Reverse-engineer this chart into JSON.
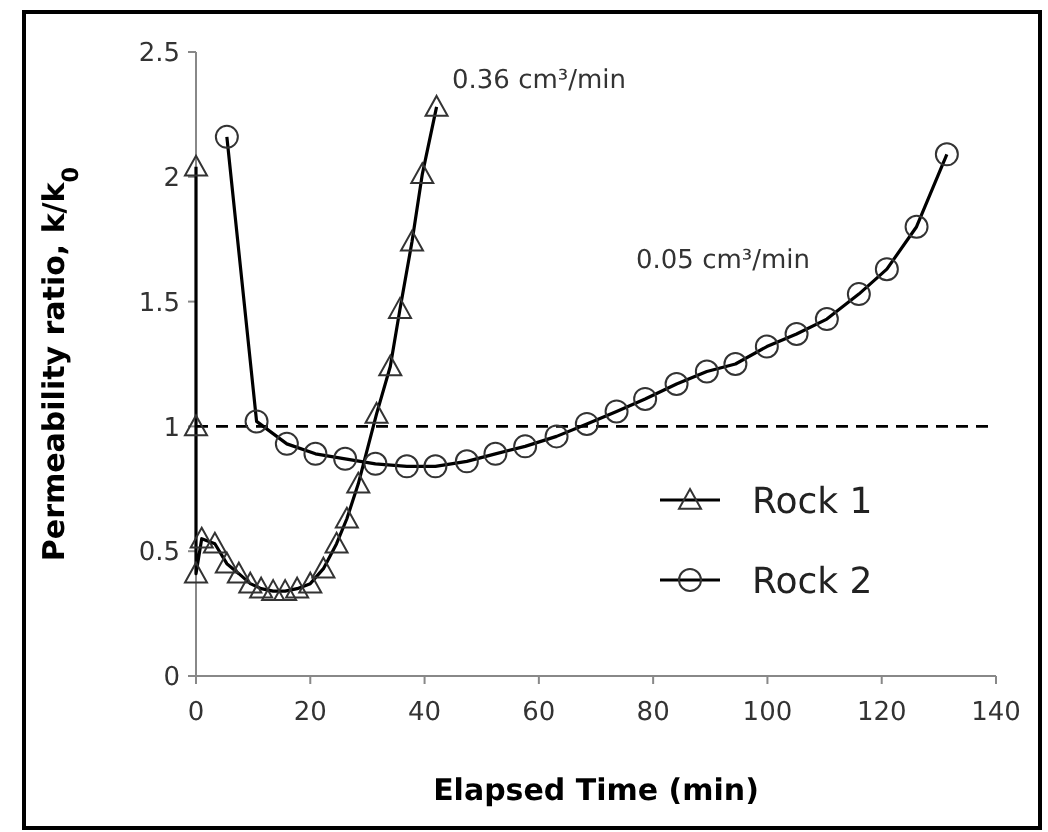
{
  "chart_data": {
    "type": "line",
    "xlabel": "Elapsed Time (min)",
    "ylabel": "Permeability ratio, k/k$_{0}$",
    "xlim": [
      0,
      140
    ],
    "xticks": [
      0,
      20,
      40,
      60,
      80,
      100,
      120,
      140
    ],
    "ylim": [
      0,
      2.5
    ],
    "yticks": [
      0,
      0.5,
      1,
      1.5,
      2,
      2.5
    ],
    "grid": false,
    "legend": "right",
    "line_style": "solid",
    "series": [
      {
        "name": "Rock 1",
        "color": "#000000",
        "marker": "triangle",
        "x": [
          0,
          0,
          0,
          1,
          3.3,
          5.4,
          7.5,
          9.5,
          11.4,
          13.5,
          15.6,
          17.7,
          20,
          22.3,
          24.6,
          26.4,
          28.4,
          31.6,
          34,
          35.7,
          37.8,
          39.6,
          42.1
        ],
        "values": [
          2.04,
          1.0,
          0.41,
          0.55,
          0.53,
          0.45,
          0.41,
          0.37,
          0.35,
          0.34,
          0.34,
          0.35,
          0.37,
          0.43,
          0.53,
          0.63,
          0.77,
          1.05,
          1.24,
          1.47,
          1.74,
          2.01,
          2.28
        ]
      },
      {
        "name": "Rock 2",
        "color": "#000000",
        "marker": "circle",
        "x": [
          5.4,
          10.6,
          15.9,
          20.9,
          26.1,
          31.4,
          36.9,
          41.9,
          47.4,
          52.4,
          57.6,
          63.1,
          68.4,
          73.6,
          78.6,
          84.1,
          89.4,
          94.4,
          99.9,
          105.1,
          110.4,
          116,
          120.9,
          126.1,
          131.4
        ],
        "values": [
          2.16,
          1.02,
          0.93,
          0.89,
          0.87,
          0.85,
          0.84,
          0.84,
          0.86,
          0.89,
          0.92,
          0.96,
          1.01,
          1.06,
          1.11,
          1.17,
          1.22,
          1.25,
          1.32,
          1.37,
          1.43,
          1.53,
          1.63,
          1.8,
          2.09
        ]
      }
    ],
    "ref_lines": [
      {
        "axis": "y",
        "value": 1,
        "line_style": "dashed",
        "color": "#000000"
      }
    ],
    "annotations": [
      "0.36 cm³/min",
      "0.05 cm³/min"
    ]
  }
}
